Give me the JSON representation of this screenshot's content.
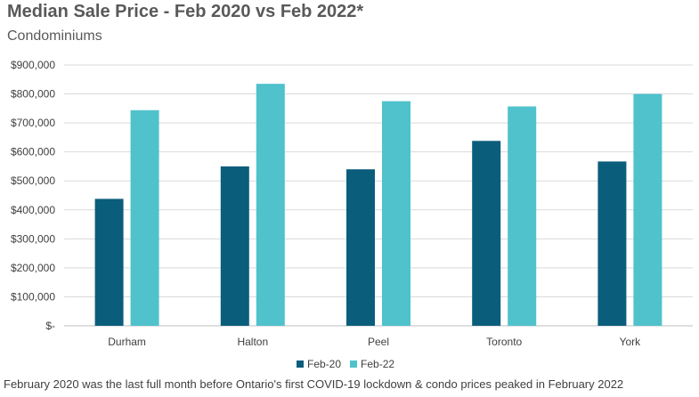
{
  "title": "Median Sale Price - Feb 2020 vs Feb 2022*",
  "subtitle": "Condominiums",
  "footnote": "February 2020 was the last full month before Ontario's first COVID-19 lockdown & condo prices peaked in February 2022",
  "colors": {
    "feb20": "#0b5d7c",
    "feb22": "#4fc2cc",
    "grid": "#d9d9d9"
  },
  "chart_data": {
    "type": "bar",
    "categories": [
      "Durham",
      "Halton",
      "Peel",
      "Toronto",
      "York"
    ],
    "series": [
      {
        "name": "Feb-20",
        "values": [
          438000,
          550000,
          540000,
          638000,
          567000
        ]
      },
      {
        "name": "Feb-22",
        "values": [
          744000,
          835000,
          775000,
          757000,
          800000
        ]
      }
    ],
    "ylim": [
      0,
      900000
    ],
    "y_ticks": [
      0,
      100000,
      200000,
      300000,
      400000,
      500000,
      600000,
      700000,
      800000,
      900000
    ],
    "y_tick_labels": [
      "$-",
      "$100,000",
      "$200,000",
      "$300,000",
      "$400,000",
      "$500,000",
      "$600,000",
      "$700,000",
      "$800,000",
      "$900,000"
    ],
    "grid": true,
    "legend_position": "bottom"
  },
  "legend": {
    "feb20": "Feb-20",
    "feb22": "Feb-22"
  }
}
